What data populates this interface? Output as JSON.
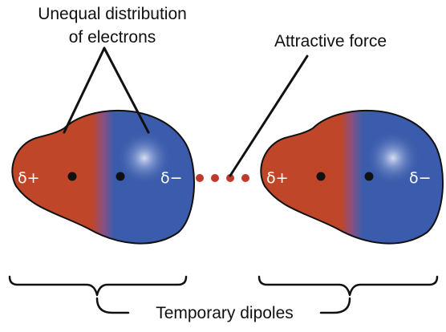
{
  "labels": {
    "unequal_line1": "Unequal distribution",
    "unequal_line2": "of electrons",
    "attractive_force": "Attractive force",
    "temporary_dipoles": "Temporary dipoles"
  },
  "molecules": [
    {
      "left_charge": "δ+",
      "right_charge": "δ−"
    },
    {
      "left_charge": "δ+",
      "right_charge": "δ−"
    }
  ],
  "colors": {
    "positive_region": "#c0462a",
    "negative_region": "#3b5cac",
    "outline": "#111111",
    "attraction_dots": "#c0392b",
    "charge_text": "#ffffff"
  }
}
